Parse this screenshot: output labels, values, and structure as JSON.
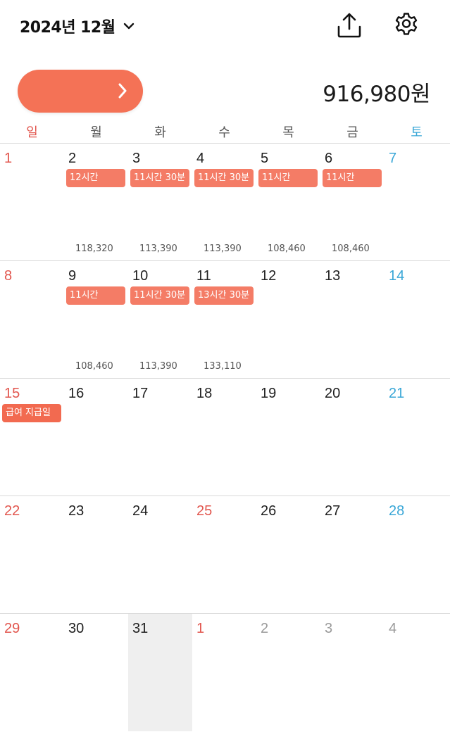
{
  "header": {
    "month": "2024년 12월"
  },
  "summary": {
    "total": "916,980원"
  },
  "weekdays": [
    "일",
    "월",
    "화",
    "수",
    "목",
    "금",
    "토"
  ],
  "weeks": [
    [
      {
        "day": "1",
        "kind": "sun"
      },
      {
        "day": "2",
        "chip": "12시간",
        "pay": "118,320"
      },
      {
        "day": "3",
        "chip": "11시간 30분",
        "pay": "113,390"
      },
      {
        "day": "4",
        "chip": "11시간 30분",
        "pay": "113,390"
      },
      {
        "day": "5",
        "chip": "11시간",
        "pay": "108,460"
      },
      {
        "day": "6",
        "chip": "11시간",
        "pay": "108,460"
      },
      {
        "day": "7",
        "kind": "sat"
      }
    ],
    [
      {
        "day": "8",
        "kind": "sun"
      },
      {
        "day": "9",
        "chip": "11시간",
        "pay": "108,460"
      },
      {
        "day": "10",
        "chip": "11시간 30분",
        "pay": "113,390"
      },
      {
        "day": "11",
        "chip": "13시간 30분",
        "pay": "133,110"
      },
      {
        "day": "12"
      },
      {
        "day": "13"
      },
      {
        "day": "14",
        "kind": "sat"
      }
    ],
    [
      {
        "day": "15",
        "kind": "sun",
        "chip": "급여 지급일",
        "chip_kind": "payday"
      },
      {
        "day": "16"
      },
      {
        "day": "17"
      },
      {
        "day": "18"
      },
      {
        "day": "19"
      },
      {
        "day": "20"
      },
      {
        "day": "21",
        "kind": "sat"
      }
    ],
    [
      {
        "day": "22",
        "kind": "sun"
      },
      {
        "day": "23"
      },
      {
        "day": "24"
      },
      {
        "day": "25",
        "kind": "holiday"
      },
      {
        "day": "26"
      },
      {
        "day": "27"
      },
      {
        "day": "28",
        "kind": "sat"
      }
    ],
    [
      {
        "day": "29",
        "kind": "sun"
      },
      {
        "day": "30"
      },
      {
        "day": "31",
        "today": true
      },
      {
        "day": "1",
        "kind": "holiday-other"
      },
      {
        "day": "2",
        "kind": "other"
      },
      {
        "day": "3",
        "kind": "other"
      },
      {
        "day": "4",
        "kind": "other"
      }
    ]
  ],
  "colors": {
    "accent": "#f47256",
    "chip": "#f47c66",
    "sunday": "#e2564e",
    "saturday": "#3aa7d7"
  },
  "icons": {
    "dropdown": "chevron-down-icon",
    "share": "share-icon",
    "settings": "gear-icon",
    "pill": "chevron-right-icon"
  }
}
